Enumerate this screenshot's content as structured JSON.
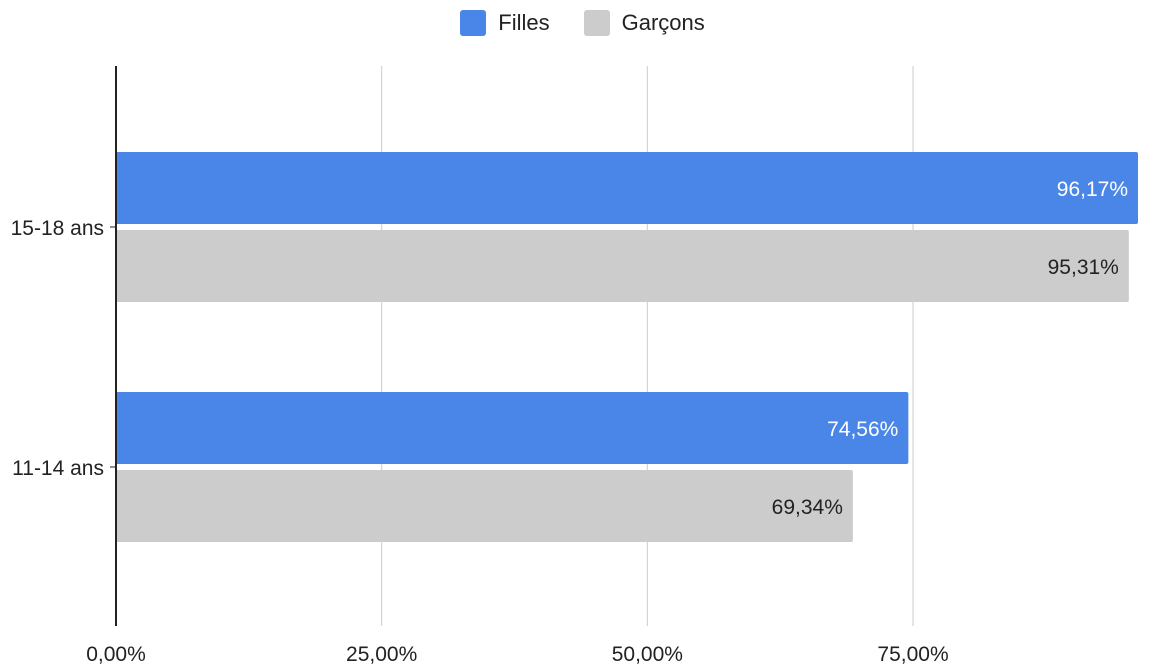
{
  "chart_data": {
    "type": "bar",
    "orientation": "horizontal",
    "categories": [
      "15-18 ans",
      "11-14 ans"
    ],
    "series": [
      {
        "name": "Filles",
        "values": [
          96.17,
          74.56
        ],
        "labels": [
          "96,17%",
          "74,56%"
        ],
        "color": "#4a86e8",
        "label_color": "#ffffff"
      },
      {
        "name": "Garçons",
        "values": [
          95.31,
          69.34
        ],
        "labels": [
          "95,31%",
          "69,34%"
        ],
        "color": "#cccccc",
        "label_color": "#222222"
      }
    ],
    "xlim": [
      0,
      96.17
    ],
    "xticks": [
      0,
      25,
      50,
      75
    ],
    "xtick_labels": [
      "0,00%",
      "25,00%",
      "50,00%",
      "75,00%"
    ],
    "grid": true,
    "legend_position": "top-center"
  }
}
